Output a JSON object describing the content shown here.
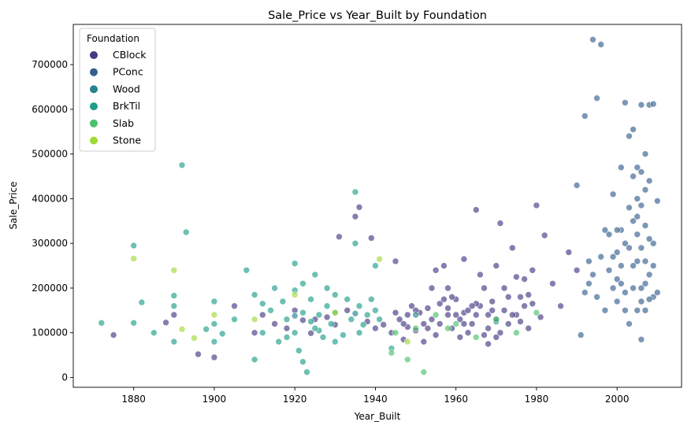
{
  "chart_data": {
    "type": "scatter",
    "title": "Sale_Price vs Year_Built by Foundation",
    "xlabel": "Year_Built",
    "ylabel": "Sale_Price",
    "xlim": [
      1865,
      2016
    ],
    "ylim": [
      -22000,
      790000
    ],
    "x_ticks": [
      1880,
      1900,
      1920,
      1940,
      1960,
      1980,
      2000
    ],
    "y_ticks": [
      0,
      100000,
      200000,
      300000,
      400000,
      500000,
      600000,
      700000
    ],
    "legend": {
      "title": "Foundation",
      "placement": "top-left",
      "entries": [
        "CBlock",
        "PConc",
        "Wood",
        "BrkTil",
        "Slab",
        "Stone"
      ]
    },
    "grid": false,
    "series": [
      {
        "name": "CBlock",
        "color": "#443983",
        "points": [
          [
            1875,
            95000
          ],
          [
            1888,
            123000
          ],
          [
            1890,
            140000
          ],
          [
            1896,
            52000
          ],
          [
            1900,
            45000
          ],
          [
            1905,
            160000
          ],
          [
            1910,
            100000
          ],
          [
            1912,
            140000
          ],
          [
            1915,
            120000
          ],
          [
            1918,
            110000
          ],
          [
            1920,
            150000
          ],
          [
            1922,
            128000
          ],
          [
            1924,
            99000
          ],
          [
            1925,
            130000
          ],
          [
            1928,
            135000
          ],
          [
            1930,
            118000
          ],
          [
            1931,
            315000
          ],
          [
            1933,
            150000
          ],
          [
            1935,
            360000
          ],
          [
            1936,
            381000
          ],
          [
            1938,
            125000
          ],
          [
            1939,
            312000
          ],
          [
            1940,
            110000
          ],
          [
            1942,
            118000
          ],
          [
            1944,
            100000
          ],
          [
            1945,
            260000
          ],
          [
            1946,
            130000
          ],
          [
            1947,
            85000
          ],
          [
            1948,
            113000
          ],
          [
            1949,
            160000
          ],
          [
            1950,
            105000
          ],
          [
            1951,
            145000
          ],
          [
            1952,
            80000
          ],
          [
            1953,
            155000
          ],
          [
            1954,
            130000
          ],
          [
            1955,
            240000
          ],
          [
            1956,
            120000
          ],
          [
            1957,
            250000
          ],
          [
            1958,
            140000
          ],
          [
            1959,
            110000
          ],
          [
            1960,
            175000
          ],
          [
            1961,
            130000
          ],
          [
            1962,
            145000
          ],
          [
            1963,
            100000
          ],
          [
            1964,
            120000
          ],
          [
            1965,
            375000
          ],
          [
            1966,
            160000
          ],
          [
            1967,
            95000
          ],
          [
            1968,
            140000
          ],
          [
            1969,
            170000
          ],
          [
            1970,
            130000
          ],
          [
            1971,
            345000
          ],
          [
            1972,
            150000
          ],
          [
            1973,
            120000
          ],
          [
            1974,
            290000
          ],
          [
            1975,
            140000
          ],
          [
            1976,
            180000
          ],
          [
            1977,
            160000
          ],
          [
            1978,
            110000
          ],
          [
            1979,
            240000
          ],
          [
            1980,
            385000
          ],
          [
            1981,
            135000
          ],
          [
            1982,
            318000
          ],
          [
            1984,
            210000
          ],
          [
            1986,
            160000
          ],
          [
            1988,
            280000
          ],
          [
            1990,
            240000
          ],
          [
            1955,
            95000
          ],
          [
            1957,
            175000
          ],
          [
            1960,
            140000
          ],
          [
            1962,
            120000
          ],
          [
            1965,
            165000
          ],
          [
            1968,
            110000
          ],
          [
            1970,
            90000
          ],
          [
            1972,
            200000
          ],
          [
            1975,
            225000
          ],
          [
            1978,
            185000
          ],
          [
            1950,
            150000
          ],
          [
            1948,
            140000
          ],
          [
            1952,
            120000
          ],
          [
            1958,
            200000
          ],
          [
            1963,
            150000
          ],
          [
            1966,
            230000
          ],
          [
            1969,
            150000
          ],
          [
            1971,
            100000
          ],
          [
            1974,
            140000
          ],
          [
            1977,
            220000
          ],
          [
            1945,
            145000
          ],
          [
            1947,
            120000
          ],
          [
            1959,
            180000
          ],
          [
            1961,
            90000
          ],
          [
            1964,
            160000
          ],
          [
            1967,
            200000
          ],
          [
            1973,
            180000
          ],
          [
            1976,
            125000
          ],
          [
            1979,
            165000
          ],
          [
            1953,
            110000
          ],
          [
            1956,
            165000
          ],
          [
            1954,
            200000
          ],
          [
            1968,
            75000
          ],
          [
            1970,
            250000
          ],
          [
            1965,
            140000
          ],
          [
            1962,
            265000
          ],
          [
            1958,
            155000
          ]
        ]
      },
      {
        "name": "PConc",
        "color": "#355f8d",
        "points": [
          [
            1990,
            430000
          ],
          [
            1991,
            95000
          ],
          [
            1992,
            585000
          ],
          [
            1993,
            210000
          ],
          [
            1994,
            756000
          ],
          [
            1995,
            625000
          ],
          [
            1996,
            745000
          ],
          [
            1997,
            330000
          ],
          [
            1998,
            240000
          ],
          [
            1999,
            410000
          ],
          [
            2000,
            280000
          ],
          [
            2001,
            470000
          ],
          [
            2002,
            190000
          ],
          [
            2002,
            615000
          ],
          [
            2003,
            540000
          ],
          [
            2004,
            350000
          ],
          [
            2004,
            555000
          ],
          [
            2005,
            470000
          ],
          [
            2005,
            260000
          ],
          [
            2006,
            610000
          ],
          [
            2006,
            385000
          ],
          [
            2007,
            500000
          ],
          [
            2007,
            150000
          ],
          [
            2008,
            440000
          ],
          [
            2008,
            610000
          ],
          [
            2009,
            612000
          ],
          [
            2009,
            300000
          ],
          [
            2010,
            395000
          ],
          [
            2010,
            190000
          ],
          [
            2006,
            85000
          ],
          [
            2003,
            120000
          ],
          [
            2001,
            330000
          ],
          [
            1999,
            200000
          ],
          [
            1997,
            150000
          ],
          [
            1995,
            180000
          ],
          [
            1993,
            260000
          ],
          [
            2000,
            220000
          ],
          [
            2002,
            300000
          ],
          [
            2004,
            250000
          ],
          [
            2005,
            320000
          ],
          [
            2006,
            200000
          ],
          [
            2007,
            340000
          ],
          [
            2008,
            230000
          ],
          [
            2009,
            180000
          ],
          [
            2005,
            400000
          ],
          [
            2004,
            450000
          ],
          [
            2003,
            380000
          ],
          [
            2006,
            290000
          ],
          [
            2007,
            260000
          ],
          [
            2008,
            310000
          ],
          [
            2001,
            250000
          ],
          [
            1998,
            320000
          ],
          [
            1996,
            270000
          ],
          [
            2000,
            170000
          ],
          [
            2002,
            150000
          ],
          [
            2004,
            200000
          ],
          [
            2005,
            150000
          ],
          [
            2006,
            170000
          ],
          [
            2007,
            210000
          ],
          [
            2008,
            175000
          ],
          [
            2009,
            250000
          ],
          [
            2007,
            420000
          ],
          [
            2006,
            460000
          ],
          [
            2005,
            360000
          ],
          [
            1994,
            230000
          ],
          [
            1992,
            190000
          ],
          [
            2003,
            290000
          ],
          [
            2001,
            210000
          ],
          [
            1999,
            270000
          ],
          [
            2000,
            330000
          ]
        ]
      },
      {
        "name": "Wood",
        "color": "#26828e",
        "points": [
          [
            1920,
            138000
          ],
          [
            1935,
            143000
          ],
          [
            1950,
            140000
          ],
          [
            1970,
            125000
          ]
        ]
      },
      {
        "name": "BrkTil",
        "color": "#1f9e89",
        "points": [
          [
            1872,
            122000
          ],
          [
            1880,
            295000
          ],
          [
            1880,
            122000
          ],
          [
            1882,
            168000
          ],
          [
            1885,
            100000
          ],
          [
            1890,
            183000
          ],
          [
            1890,
            160000
          ],
          [
            1890,
            80000
          ],
          [
            1892,
            475000
          ],
          [
            1893,
            325000
          ],
          [
            1898,
            108000
          ],
          [
            1900,
            170000
          ],
          [
            1900,
            120000
          ],
          [
            1900,
            80000
          ],
          [
            1902,
            98000
          ],
          [
            1905,
            130000
          ],
          [
            1908,
            240000
          ],
          [
            1910,
            185000
          ],
          [
            1910,
            40000
          ],
          [
            1912,
            100000
          ],
          [
            1914,
            150000
          ],
          [
            1915,
            200000
          ],
          [
            1916,
            80000
          ],
          [
            1918,
            130000
          ],
          [
            1920,
            255000
          ],
          [
            1920,
            100000
          ],
          [
            1921,
            60000
          ],
          [
            1922,
            210000
          ],
          [
            1922,
            35000
          ],
          [
            1923,
            12000
          ],
          [
            1924,
            175000
          ],
          [
            1925,
            230000
          ],
          [
            1926,
            140000
          ],
          [
            1927,
            90000
          ],
          [
            1928,
            200000
          ],
          [
            1929,
            120000
          ],
          [
            1930,
            185000
          ],
          [
            1930,
            145000
          ],
          [
            1932,
            95000
          ],
          [
            1934,
            130000
          ],
          [
            1935,
            415000
          ],
          [
            1935,
            300000
          ],
          [
            1936,
            160000
          ],
          [
            1937,
            118000
          ],
          [
            1938,
            140000
          ],
          [
            1940,
            150000
          ],
          [
            1940,
            250000
          ],
          [
            1912,
            165000
          ],
          [
            1918,
            90000
          ],
          [
            1924,
            125000
          ],
          [
            1926,
            105000
          ],
          [
            1928,
            160000
          ],
          [
            1930,
            80000
          ],
          [
            1922,
            145000
          ],
          [
            1917,
            170000
          ],
          [
            1925,
            110000
          ],
          [
            1920,
            195000
          ],
          [
            1933,
            175000
          ],
          [
            1936,
            100000
          ],
          [
            1939,
            175000
          ],
          [
            1941,
            130000
          ],
          [
            1944,
            65000
          ]
        ]
      },
      {
        "name": "Slab",
        "color": "#4ac16d",
        "points": [
          [
            1945,
            100000
          ],
          [
            1948,
            40000
          ],
          [
            1950,
            110000
          ],
          [
            1952,
            12000
          ],
          [
            1955,
            140000
          ],
          [
            1960,
            120000
          ],
          [
            1965,
            90000
          ],
          [
            1970,
            130000
          ],
          [
            1975,
            100000
          ],
          [
            1980,
            145000
          ],
          [
            1944,
            55000
          ],
          [
            1958,
            110000
          ]
        ]
      },
      {
        "name": "Stone",
        "color": "#a0da39",
        "points": [
          [
            1880,
            266000
          ],
          [
            1890,
            240000
          ],
          [
            1892,
            108000
          ],
          [
            1895,
            88000
          ],
          [
            1900,
            140000
          ],
          [
            1910,
            130000
          ],
          [
            1920,
            185000
          ],
          [
            1930,
            145000
          ],
          [
            1941,
            265000
          ],
          [
            1948,
            80000
          ]
        ]
      }
    ]
  }
}
